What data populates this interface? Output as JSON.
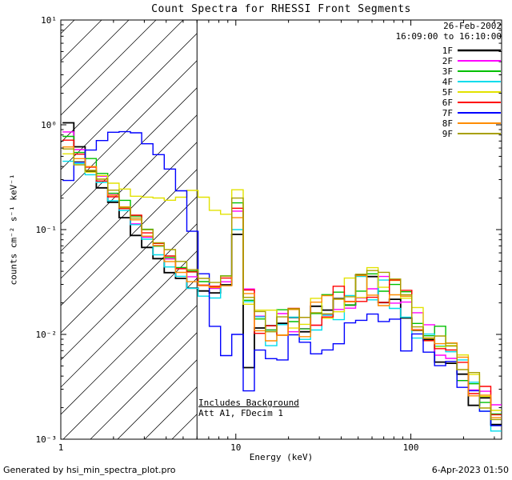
{
  "header": {
    "title": "Count Spectra for RHESSI Front Segments",
    "date": "26-Feb-2002",
    "time_range": "16:09:00 to 16:10:00"
  },
  "annotations": {
    "background": "Includes Background",
    "attenuator": "Att A1, FDecim 1"
  },
  "footer": {
    "generator": "Generated by hsi_min_spectra_plot.pro",
    "timestamp": "6-Apr-2023 01:50"
  },
  "chart_data": {
    "type": "line",
    "title": "Count Spectra for RHESSI Front Segments",
    "xlabel": "Energy (keV)",
    "ylabel": "counts cm⁻² s⁻¹ keV⁻¹",
    "xscale": "log",
    "yscale": "log",
    "xlim": [
      1,
      330
    ],
    "ylim": [
      0.001,
      10
    ],
    "x_ticks": [
      {
        "label": "1",
        "value": 1
      },
      {
        "label": "10",
        "value": 10
      },
      {
        "label": "100",
        "value": 100
      }
    ],
    "y_ticks": [
      {
        "label": "10¹",
        "value": 10
      },
      {
        "label": "10⁰",
        "value": 1
      },
      {
        "label": "10⁻¹",
        "value": 0.1
      },
      {
        "label": "10⁻²",
        "value": 0.01
      },
      {
        "label": "10⁻³",
        "value": 0.001
      }
    ],
    "hatch_region": [
      1,
      6
    ],
    "attenuator_boundary_kev": 6,
    "legend_position": "top-right",
    "x": [
      1.1,
      1.28,
      1.48,
      1.72,
      2.0,
      2.32,
      2.69,
      3.12,
      3.62,
      4.2,
      4.87,
      5.65,
      6.55,
      7.6,
      8.81,
      10.2,
      11.9,
      13.7,
      15.9,
      18.5,
      21.4,
      24.8,
      28.8,
      33.4,
      38.7,
      44.9,
      52.1,
      60.4,
      70.0,
      81.2,
      94.2,
      109,
      127,
      147,
      170,
      198,
      229,
      266,
      308
    ],
    "series": [
      {
        "name": "1F",
        "color": "#000000",
        "values": [
          1.0,
          0.62,
          0.38,
          0.25,
          0.17,
          0.12,
          0.09,
          0.07,
          0.052,
          0.042,
          0.034,
          0.028,
          0.024,
          0.026,
          0.028,
          0.09,
          0.006,
          0.012,
          0.01,
          0.011,
          0.012,
          0.013,
          0.015,
          0.017,
          0.019,
          0.023,
          0.027,
          0.029,
          0.025,
          0.02,
          0.016,
          0.012,
          0.009,
          0.007,
          0.005,
          0.0038,
          0.0026,
          0.0018,
          0.0012
        ]
      },
      {
        "name": "2F",
        "color": "#ff00ff",
        "values": [
          0.85,
          0.6,
          0.42,
          0.3,
          0.22,
          0.16,
          0.12,
          0.09,
          0.068,
          0.054,
          0.044,
          0.036,
          0.031,
          0.029,
          0.032,
          0.15,
          0.02,
          0.014,
          0.013,
          0.012,
          0.014,
          0.013,
          0.015,
          0.017,
          0.02,
          0.024,
          0.028,
          0.03,
          0.027,
          0.023,
          0.018,
          0.015,
          0.011,
          0.0085,
          0.0062,
          0.0046,
          0.0034,
          0.0024,
          0.0016
        ]
      },
      {
        "name": "3F",
        "color": "#00c000",
        "values": [
          0.8,
          0.58,
          0.44,
          0.32,
          0.24,
          0.18,
          0.13,
          0.1,
          0.075,
          0.058,
          0.047,
          0.038,
          0.033,
          0.03,
          0.034,
          0.18,
          0.022,
          0.015,
          0.013,
          0.013,
          0.014,
          0.014,
          0.016,
          0.018,
          0.021,
          0.026,
          0.03,
          0.032,
          0.028,
          0.024,
          0.019,
          0.015,
          0.012,
          0.009,
          0.0065,
          0.0048,
          0.0035,
          0.0024,
          0.0016
        ]
      },
      {
        "name": "4F",
        "color": "#00dcec",
        "values": [
          0.48,
          0.4,
          0.33,
          0.26,
          0.2,
          0.15,
          0.11,
          0.082,
          0.06,
          0.045,
          0.034,
          0.026,
          0.022,
          0.024,
          0.027,
          0.1,
          0.016,
          0.012,
          0.011,
          0.011,
          0.012,
          0.012,
          0.014,
          0.016,
          0.018,
          0.022,
          0.026,
          0.028,
          0.025,
          0.021,
          0.017,
          0.013,
          0.01,
          0.0075,
          0.0055,
          0.0042,
          0.003,
          0.0021,
          0.0014
        ]
      },
      {
        "name": "5F",
        "color": "#e2e200",
        "values": [
          0.5,
          0.43,
          0.36,
          0.31,
          0.27,
          0.24,
          0.22,
          0.21,
          0.2,
          0.2,
          0.21,
          0.22,
          0.19,
          0.16,
          0.13,
          0.24,
          0.024,
          0.016,
          0.014,
          0.013,
          0.014,
          0.015,
          0.016,
          0.018,
          0.022,
          0.027,
          0.031,
          0.033,
          0.029,
          0.025,
          0.02,
          0.016,
          0.012,
          0.0095,
          0.007,
          0.0052,
          0.0038,
          0.0026,
          0.0018
        ]
      },
      {
        "name": "6F",
        "color": "#ff0000",
        "values": [
          0.7,
          0.52,
          0.4,
          0.3,
          0.22,
          0.17,
          0.13,
          0.095,
          0.072,
          0.056,
          0.045,
          0.037,
          0.032,
          0.029,
          0.033,
          0.16,
          0.021,
          0.014,
          0.012,
          0.013,
          0.013,
          0.014,
          0.015,
          0.018,
          0.021,
          0.025,
          0.029,
          0.031,
          0.028,
          0.024,
          0.019,
          0.015,
          0.011,
          0.0088,
          0.0064,
          0.0048,
          0.0035,
          0.0025,
          0.0017
        ]
      },
      {
        "name": "7F",
        "color": "#0000ff",
        "values": [
          0.3,
          0.45,
          0.6,
          0.72,
          0.8,
          0.82,
          0.78,
          0.7,
          0.55,
          0.38,
          0.22,
          0.1,
          0.035,
          0.012,
          0.006,
          0.01,
          0.0035,
          0.0065,
          0.007,
          0.0075,
          0.008,
          0.008,
          0.0085,
          0.009,
          0.01,
          0.011,
          0.012,
          0.013,
          0.012,
          0.011,
          0.0095,
          0.008,
          0.0065,
          0.005,
          0.004,
          0.003,
          0.0022,
          0.0016,
          0.0012
        ]
      },
      {
        "name": "8F",
        "color": "#ff8c00",
        "values": [
          0.65,
          0.5,
          0.38,
          0.28,
          0.21,
          0.16,
          0.12,
          0.09,
          0.068,
          0.052,
          0.042,
          0.034,
          0.029,
          0.027,
          0.031,
          0.13,
          0.019,
          0.013,
          0.012,
          0.012,
          0.013,
          0.013,
          0.015,
          0.017,
          0.02,
          0.024,
          0.028,
          0.03,
          0.026,
          0.022,
          0.018,
          0.014,
          0.011,
          0.008,
          0.006,
          0.0045,
          0.0032,
          0.0022,
          0.0015
        ]
      },
      {
        "name": "9F",
        "color": "#a8a000",
        "values": [
          0.55,
          0.45,
          0.36,
          0.28,
          0.22,
          0.17,
          0.13,
          0.1,
          0.078,
          0.06,
          0.048,
          0.039,
          0.034,
          0.031,
          0.035,
          0.2,
          0.023,
          0.015,
          0.013,
          0.013,
          0.014,
          0.015,
          0.016,
          0.019,
          0.022,
          0.026,
          0.03,
          0.032,
          0.028,
          0.024,
          0.019,
          0.015,
          0.012,
          0.009,
          0.0068,
          0.005,
          0.0036,
          0.0025,
          0.0017
        ]
      }
    ]
  }
}
